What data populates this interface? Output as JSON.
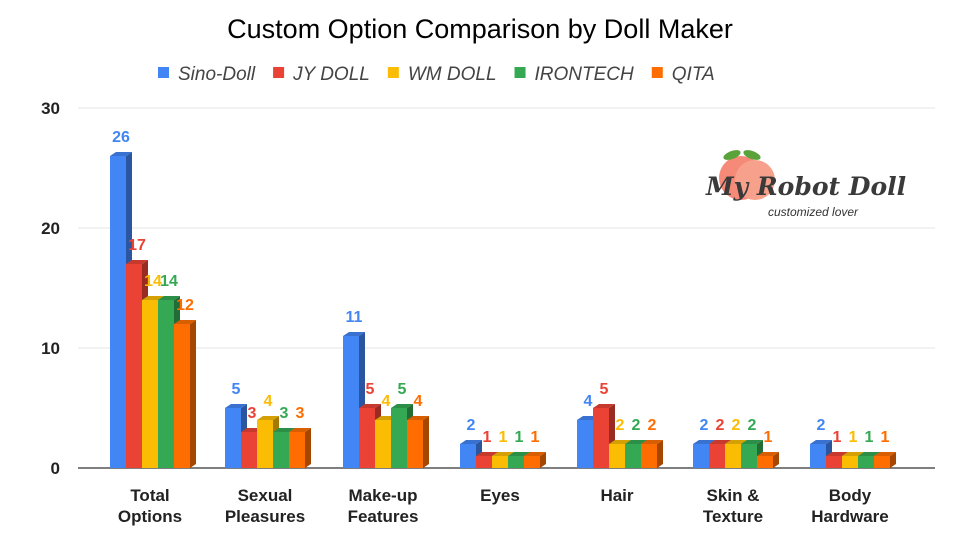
{
  "chart_data": {
    "type": "bar",
    "title": "Custom Option Comparison by Doll Maker",
    "xlabel": "",
    "ylabel": "",
    "ylim": [
      0,
      30
    ],
    "yticks": [
      "0",
      "10",
      "20",
      "30"
    ],
    "grid": true,
    "legend_position": "top",
    "categories": [
      [
        "Total",
        "Options"
      ],
      [
        "Sexual",
        "Pleasures"
      ],
      [
        "Make-up",
        "Features"
      ],
      [
        "Eyes"
      ],
      [
        "Hair"
      ],
      [
        "Skin &",
        "Texture"
      ],
      [
        "Body",
        "Hardware"
      ]
    ],
    "series": [
      {
        "name": "Sino-Doll",
        "color": "#4285f4",
        "values": [
          26,
          5,
          11,
          2,
          4,
          2,
          2
        ]
      },
      {
        "name": "JY DOLL",
        "color": "#ea4335",
        "values": [
          17,
          3,
          5,
          1,
          5,
          2,
          1
        ]
      },
      {
        "name": "WM DOLL",
        "color": "#fbbc04",
        "values": [
          14,
          4,
          4,
          1,
          2,
          2,
          1
        ]
      },
      {
        "name": "IRONTECH",
        "color": "#34a853",
        "values": [
          14,
          3,
          5,
          1,
          2,
          2,
          1
        ]
      },
      {
        "name": "QITA",
        "color": "#ff6d01",
        "values": [
          12,
          3,
          4,
          1,
          2,
          1,
          1
        ]
      }
    ]
  },
  "logo": {
    "name": "My Robot Doll",
    "tagline": "customized lover"
  }
}
